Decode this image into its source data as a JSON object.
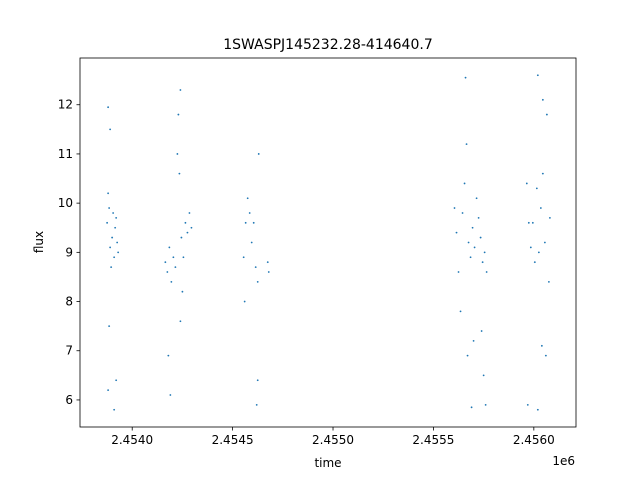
{
  "chart_data": {
    "type": "scatter",
    "title": "1SWASPJ145232.28-414640.7",
    "xlabel": "time",
    "ylabel": "flux",
    "x_offset_label": "1e6",
    "xlim": [
      2453740,
      2456210
    ],
    "ylim": [
      5.45,
      12.95
    ],
    "x_ticks": [
      2454000,
      2454500,
      2455000,
      2455500,
      2456000
    ],
    "x_tick_labels": [
      "2.4540",
      "2.4545",
      "2.4550",
      "2.4555",
      "2.4560"
    ],
    "y_ticks": [
      6,
      7,
      8,
      9,
      10,
      11,
      12
    ],
    "y_tick_labels": [
      "6",
      "7",
      "8",
      "9",
      "10",
      "11",
      "12"
    ],
    "grid": false,
    "legend": "none",
    "marker_color": "#1f77b4",
    "series": [
      {
        "values": [
          {
            "x": 2453875,
            "y": 9.6
          },
          {
            "x": 2453880,
            "y": 10.2
          },
          {
            "x": 2453885,
            "y": 9.9
          },
          {
            "x": 2453890,
            "y": 9.1
          },
          {
            "x": 2453895,
            "y": 8.7
          },
          {
            "x": 2453900,
            "y": 9.3
          },
          {
            "x": 2453905,
            "y": 9.8
          },
          {
            "x": 2453910,
            "y": 8.9
          },
          {
            "x": 2453915,
            "y": 9.5
          },
          {
            "x": 2453920,
            "y": 9.7
          },
          {
            "x": 2453925,
            "y": 9.2
          },
          {
            "x": 2453930,
            "y": 9.0
          },
          {
            "x": 2453880,
            "y": 11.95
          },
          {
            "x": 2453890,
            "y": 11.5
          },
          {
            "x": 2453885,
            "y": 7.5
          },
          {
            "x": 2453880,
            "y": 6.2
          },
          {
            "x": 2453910,
            "y": 5.8
          },
          {
            "x": 2453920,
            "y": 6.4
          },
          {
            "x": 2454165,
            "y": 8.8
          },
          {
            "x": 2454175,
            "y": 8.6
          },
          {
            "x": 2454185,
            "y": 9.1
          },
          {
            "x": 2454195,
            "y": 8.4
          },
          {
            "x": 2454205,
            "y": 8.9
          },
          {
            "x": 2454215,
            "y": 8.7
          },
          {
            "x": 2454225,
            "y": 11.0
          },
          {
            "x": 2454230,
            "y": 11.8
          },
          {
            "x": 2454235,
            "y": 10.6
          },
          {
            "x": 2454240,
            "y": 12.3
          },
          {
            "x": 2454245,
            "y": 9.3
          },
          {
            "x": 2454255,
            "y": 8.9
          },
          {
            "x": 2454265,
            "y": 9.6
          },
          {
            "x": 2454275,
            "y": 9.4
          },
          {
            "x": 2454285,
            "y": 9.8
          },
          {
            "x": 2454295,
            "y": 9.5
          },
          {
            "x": 2454180,
            "y": 6.9
          },
          {
            "x": 2454190,
            "y": 6.1
          },
          {
            "x": 2454240,
            "y": 7.6
          },
          {
            "x": 2454250,
            "y": 8.2
          },
          {
            "x": 2454555,
            "y": 8.9
          },
          {
            "x": 2454565,
            "y": 9.6
          },
          {
            "x": 2454575,
            "y": 10.1
          },
          {
            "x": 2454585,
            "y": 9.8
          },
          {
            "x": 2454595,
            "y": 9.2
          },
          {
            "x": 2454605,
            "y": 9.6
          },
          {
            "x": 2454615,
            "y": 8.7
          },
          {
            "x": 2454625,
            "y": 8.4
          },
          {
            "x": 2454630,
            "y": 11.0
          },
          {
            "x": 2454620,
            "y": 5.9
          },
          {
            "x": 2454625,
            "y": 6.4
          },
          {
            "x": 2454560,
            "y": 8.0
          },
          {
            "x": 2454675,
            "y": 8.8
          },
          {
            "x": 2454680,
            "y": 8.6
          },
          {
            "x": 2455605,
            "y": 9.9
          },
          {
            "x": 2455615,
            "y": 9.4
          },
          {
            "x": 2455625,
            "y": 8.6
          },
          {
            "x": 2455635,
            "y": 7.8
          },
          {
            "x": 2455645,
            "y": 9.8
          },
          {
            "x": 2455655,
            "y": 10.4
          },
          {
            "x": 2455665,
            "y": 11.2
          },
          {
            "x": 2455675,
            "y": 9.2
          },
          {
            "x": 2455685,
            "y": 8.9
          },
          {
            "x": 2455695,
            "y": 9.5
          },
          {
            "x": 2455705,
            "y": 9.1
          },
          {
            "x": 2455715,
            "y": 10.1
          },
          {
            "x": 2455725,
            "y": 9.7
          },
          {
            "x": 2455735,
            "y": 9.3
          },
          {
            "x": 2455745,
            "y": 8.8
          },
          {
            "x": 2455755,
            "y": 9.0
          },
          {
            "x": 2455765,
            "y": 8.6
          },
          {
            "x": 2455660,
            "y": 12.55
          },
          {
            "x": 2455690,
            "y": 5.85
          },
          {
            "x": 2455760,
            "y": 5.9
          },
          {
            "x": 2455670,
            "y": 6.9
          },
          {
            "x": 2455700,
            "y": 7.2
          },
          {
            "x": 2455740,
            "y": 7.4
          },
          {
            "x": 2455750,
            "y": 6.5
          },
          {
            "x": 2455965,
            "y": 10.4
          },
          {
            "x": 2455975,
            "y": 9.6
          },
          {
            "x": 2455985,
            "y": 9.1
          },
          {
            "x": 2455995,
            "y": 9.6
          },
          {
            "x": 2456005,
            "y": 8.8
          },
          {
            "x": 2456015,
            "y": 10.3
          },
          {
            "x": 2456025,
            "y": 9.0
          },
          {
            "x": 2456035,
            "y": 9.9
          },
          {
            "x": 2456045,
            "y": 10.6
          },
          {
            "x": 2456055,
            "y": 9.2
          },
          {
            "x": 2456065,
            "y": 11.8
          },
          {
            "x": 2456075,
            "y": 8.4
          },
          {
            "x": 2456080,
            "y": 9.7
          },
          {
            "x": 2456020,
            "y": 12.6
          },
          {
            "x": 2456045,
            "y": 12.1
          },
          {
            "x": 2455970,
            "y": 5.9
          },
          {
            "x": 2456020,
            "y": 5.8
          },
          {
            "x": 2456040,
            "y": 7.1
          },
          {
            "x": 2456060,
            "y": 6.9
          }
        ]
      }
    ]
  }
}
